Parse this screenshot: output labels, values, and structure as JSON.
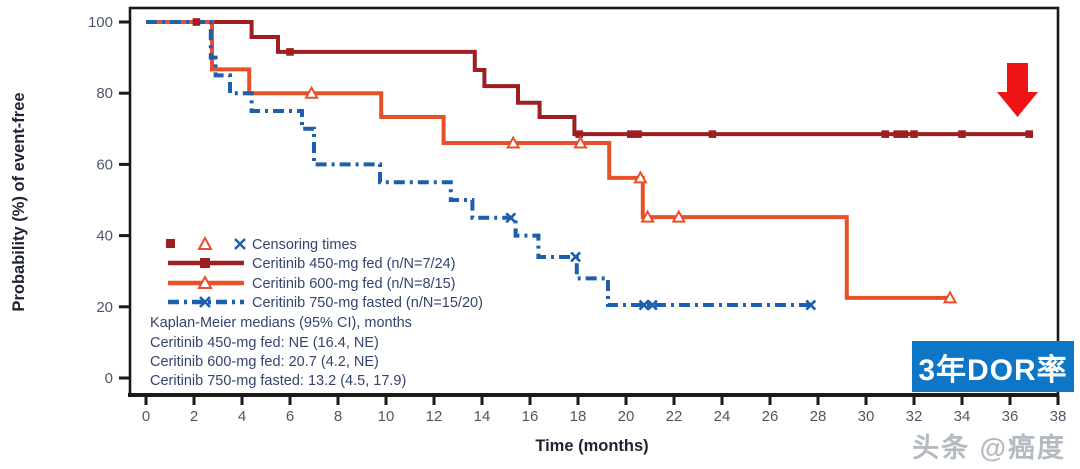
{
  "watermark": "头条 @癌度",
  "callout": {
    "label": "3年DOR率",
    "bg_color": "#0e76c6",
    "text_color": "#ffffff"
  },
  "arrow": {
    "color": "#ee1314"
  },
  "chart_data": {
    "type": "line",
    "subtype": "kaplan-meier-step",
    "xlabel": "Time (months)",
    "ylabel": "Probability (%) of event-free",
    "xlim": [
      0,
      38
    ],
    "ylim": [
      0,
      100
    ],
    "xticks": [
      0,
      2,
      4,
      6,
      8,
      10,
      12,
      14,
      16,
      18,
      20,
      22,
      24,
      26,
      28,
      30,
      32,
      34,
      36,
      38
    ],
    "yticks": [
      0,
      20,
      40,
      60,
      80,
      100
    ],
    "grid": false,
    "legend_position": "inside-left-middle",
    "series": [
      {
        "name": "Ceritinib 450-mg fed (n/N=7/24)",
        "color": "#9c1f21",
        "style": "solid",
        "marker": "square",
        "points": [
          [
            0,
            100
          ],
          [
            4.4,
            95.8
          ],
          [
            5.5,
            91.6
          ],
          [
            13.7,
            86.5
          ],
          [
            14.1,
            82.0
          ],
          [
            15.5,
            77.3
          ],
          [
            16.4,
            73.3
          ],
          [
            17.85,
            68.5
          ]
        ],
        "end_x": 36.8,
        "censors": [
          [
            2.1,
            100
          ],
          [
            6.0,
            91.6
          ],
          [
            18.05,
            68.5
          ],
          [
            20.2,
            68.5
          ],
          [
            20.5,
            68.5
          ],
          [
            23.6,
            68.5
          ],
          [
            30.8,
            68.5
          ],
          [
            31.3,
            68.5
          ],
          [
            31.6,
            68.5
          ],
          [
            32.0,
            68.5
          ],
          [
            34.0,
            68.5
          ],
          [
            36.8,
            68.5
          ]
        ]
      },
      {
        "name": "Ceritinib 600-mg fed (n/N=8/15)",
        "color": "#e8502a",
        "style": "solid",
        "marker": "triangle",
        "points": [
          [
            0,
            100
          ],
          [
            2.75,
            86.7
          ],
          [
            4.3,
            80.0
          ],
          [
            9.8,
            73.3
          ],
          [
            12.4,
            66.0
          ],
          [
            19.3,
            56.2
          ],
          [
            20.7,
            45.2
          ],
          [
            29.2,
            22.5
          ]
        ],
        "end_x": 33.5,
        "censors": [
          [
            6.9,
            80.0
          ],
          [
            15.3,
            66.0
          ],
          [
            18.1,
            66.0
          ],
          [
            20.6,
            56.2
          ],
          [
            20.9,
            45.2
          ],
          [
            22.2,
            45.2
          ],
          [
            33.5,
            22.5
          ]
        ]
      },
      {
        "name": "Ceritinib 750-mg fasted (n/N=15/20)",
        "color": "#1d5fae",
        "style": "dashdot",
        "marker": "x",
        "points": [
          [
            0,
            100
          ],
          [
            2.7,
            90.0
          ],
          [
            2.9,
            85.0
          ],
          [
            3.5,
            80.0
          ],
          [
            4.4,
            75.0
          ],
          [
            6.5,
            70.0
          ],
          [
            7.0,
            60.0
          ],
          [
            9.75,
            55.0
          ],
          [
            12.7,
            50.0
          ],
          [
            13.6,
            45.0
          ],
          [
            15.4,
            40.0
          ],
          [
            16.35,
            34.0
          ],
          [
            17.95,
            28.0
          ],
          [
            19.25,
            20.5
          ]
        ],
        "end_x": 27.7,
        "censors": [
          [
            15.2,
            45.0
          ],
          [
            17.9,
            34.0
          ],
          [
            20.75,
            20.5
          ],
          [
            21.1,
            20.5
          ],
          [
            27.7,
            20.5
          ]
        ]
      }
    ]
  },
  "legend": {
    "censoring_label": "Censoring times",
    "medians_title": "Kaplan-Meier medians (95% CI), months",
    "medians": [
      "Ceritinib 450-mg fed: NE (16.4, NE)",
      "Ceritinib 600-mg fed: 20.7 (4.2, NE)",
      "Ceritinib 750-mg fasted: 13.2 (4.5, 17.9)"
    ]
  }
}
